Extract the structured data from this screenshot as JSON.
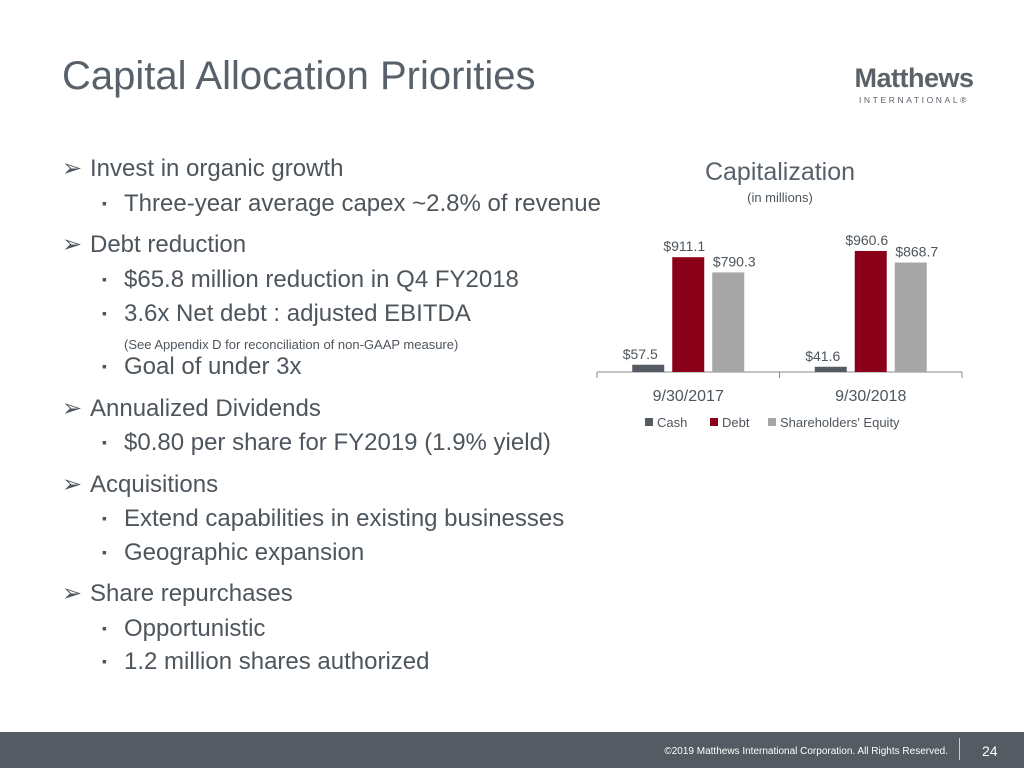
{
  "title": "Capital Allocation Priorities",
  "logo": {
    "name": "Matthews",
    "sub": "INTERNATIONAL®"
  },
  "bullets": [
    {
      "level": 1,
      "text": "Invest in organic growth"
    },
    {
      "level": 2,
      "text": "Three-year average capex ~2.8% of revenue"
    },
    {
      "level": 1,
      "text": "Debt reduction"
    },
    {
      "level": 2,
      "text": "$65.8 million reduction in Q4 FY2018"
    },
    {
      "level": 2,
      "text": "3.6x Net debt : adjusted EBITDA"
    },
    {
      "level": 3,
      "text": "(See Appendix D for reconciliation of non-GAAP measure)"
    },
    {
      "level": 2,
      "text": "Goal of under 3x"
    },
    {
      "level": 1,
      "text": "Annualized Dividends"
    },
    {
      "level": 2,
      "text": "$0.80 per share for FY2019 (1.9% yield)"
    },
    {
      "level": 1,
      "text": "Acquisitions"
    },
    {
      "level": 2,
      "text": "Extend capabilities in existing businesses"
    },
    {
      "level": 2,
      "text": "Geographic expansion"
    },
    {
      "level": 1,
      "text": "Share repurchases"
    },
    {
      "level": 2,
      "text": "Opportunistic"
    },
    {
      "level": 2,
      "text": "1.2 million shares authorized"
    }
  ],
  "marks": {
    "level1": "➢",
    "level2": "▪"
  },
  "chart_data": {
    "type": "bar",
    "title": "Capitalization",
    "subtitle": "(in millions)",
    "categories": [
      "9/30/2017",
      "9/30/2018"
    ],
    "series": [
      {
        "name": "Cash",
        "values": [
          57.5,
          41.6
        ],
        "labels": [
          "$57.5",
          "$41.6"
        ],
        "color": "#545b62"
      },
      {
        "name": "Debt",
        "values": [
          911.1,
          960.6
        ],
        "labels": [
          "$911.1",
          "$960.6"
        ],
        "color": "#8a0019"
      },
      {
        "name": "Shareholders' Equity",
        "values": [
          790.3,
          868.7
        ],
        "labels": [
          "$790.3",
          "$868.7"
        ],
        "color": "#a6a6a6"
      }
    ],
    "legend": "bottom",
    "grid": false
  },
  "footer": {
    "copyright": "©2019 Matthews International Corporation. All Rights Reserved.",
    "page": "24"
  }
}
